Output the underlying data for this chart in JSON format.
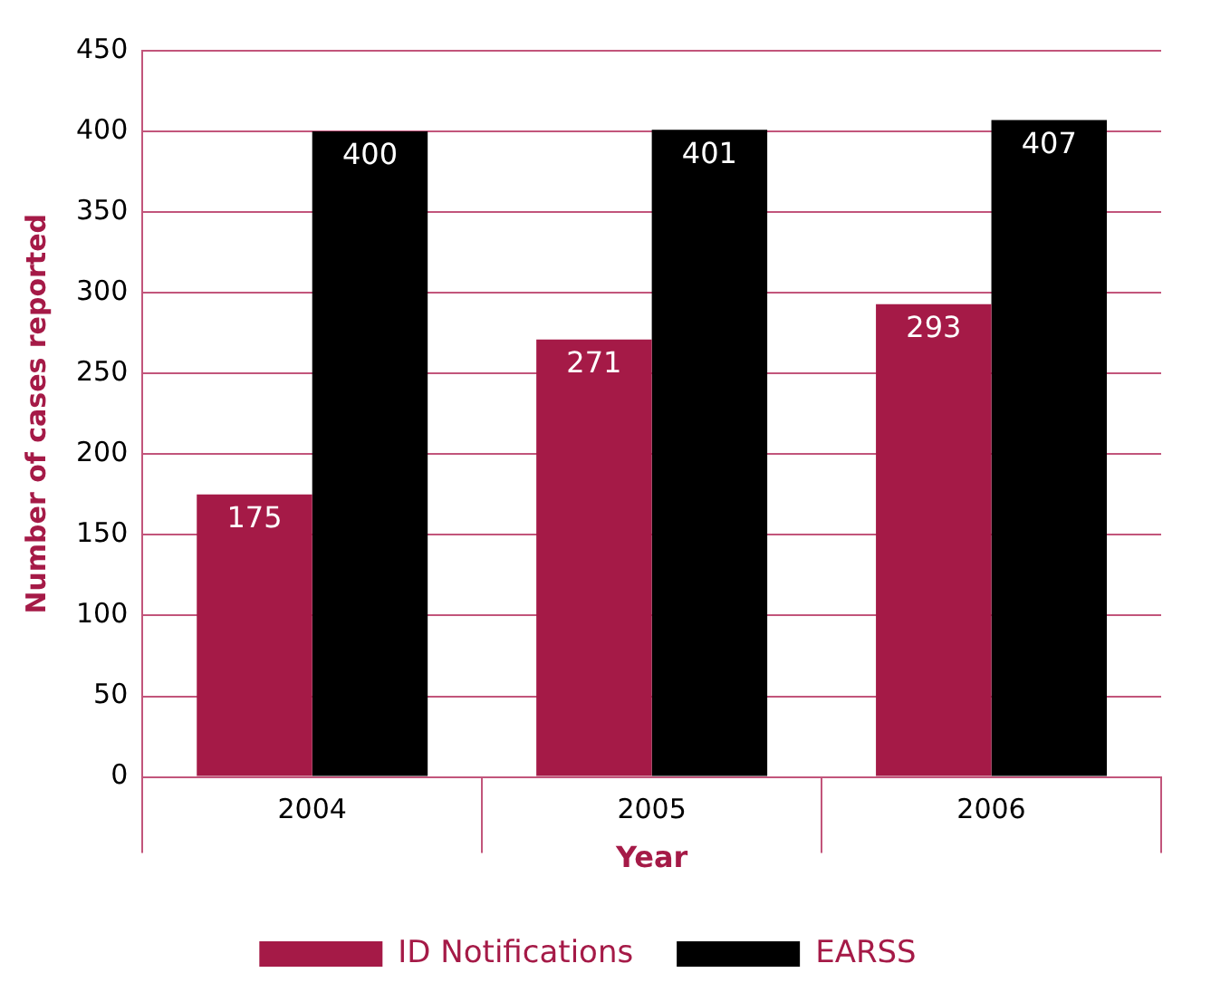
{
  "chart_data": {
    "type": "bar",
    "xlabel": "Year",
    "ylabel": "Number of cases reported",
    "categories": [
      "2004",
      "2005",
      "2006"
    ],
    "series": [
      {
        "name": "ID Notifications",
        "color": "#a51a47",
        "values": [
          175,
          271,
          293
        ]
      },
      {
        "name": "EARSS",
        "color": "#000000",
        "values": [
          400,
          401,
          407
        ]
      }
    ],
    "ylim": [
      0,
      450
    ],
    "yticks": [
      0,
      50,
      100,
      150,
      200,
      250,
      300,
      350,
      400,
      450
    ],
    "grid": "y",
    "legend": "bottom",
    "data_labels": true
  }
}
